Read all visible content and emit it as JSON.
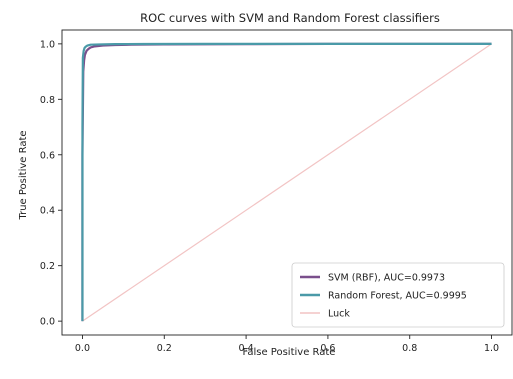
{
  "chart_data": {
    "type": "line",
    "title": "ROC curves with SVM and Random Forest classifiers",
    "xlabel": "False Positive Rate",
    "ylabel": "True Positive Rate",
    "xlim": [
      -0.05,
      1.05
    ],
    "ylim": [
      -0.05,
      1.05
    ],
    "xticks": [
      0.0,
      0.2,
      0.4,
      0.6,
      0.8,
      1.0
    ],
    "yticks": [
      0.0,
      0.2,
      0.4,
      0.6,
      0.8,
      1.0
    ],
    "xtick_labels": [
      "0.0",
      "0.2",
      "0.4",
      "0.6",
      "0.8",
      "1.0"
    ],
    "ytick_labels": [
      "0.0",
      "0.2",
      "0.4",
      "0.6",
      "0.8",
      "1.0"
    ],
    "grid": false,
    "legend_position": "bottom-right",
    "series": [
      {
        "name": "SVM (RBF), AUC=0.9973",
        "color": "#7a4f8c",
        "x": [
          0.0,
          0.0,
          0.002,
          0.004,
          0.006,
          0.01,
          0.015,
          0.02,
          0.03,
          0.05,
          0.08,
          0.12,
          0.2,
          0.4,
          0.6,
          0.8,
          1.0
        ],
        "y": [
          0.0,
          0.6,
          0.9,
          0.94,
          0.96,
          0.975,
          0.982,
          0.987,
          0.991,
          0.994,
          0.996,
          0.997,
          0.998,
          0.999,
          1.0,
          1.0,
          1.0
        ]
      },
      {
        "name": "Random Forest, AUC=0.9995",
        "color": "#4a9aa8",
        "x": [
          0.0,
          0.0,
          0.001,
          0.003,
          0.005,
          0.008,
          0.012,
          0.02,
          0.04,
          0.08,
          0.15,
          0.3,
          0.6,
          1.0
        ],
        "y": [
          0.0,
          0.7,
          0.95,
          0.975,
          0.985,
          0.99,
          0.994,
          0.997,
          0.998,
          0.999,
          0.9995,
          1.0,
          1.0,
          1.0
        ]
      },
      {
        "name": "Luck",
        "color": "#f2c4c4",
        "x": [
          0.0,
          1.0
        ],
        "y": [
          0.0,
          1.0
        ]
      }
    ]
  }
}
